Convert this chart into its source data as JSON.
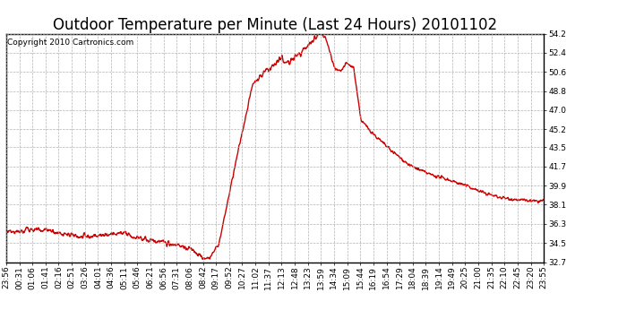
{
  "title": "Outdoor Temperature per Minute (Last 24 Hours) 20101102",
  "copyright": "Copyright 2010 Cartronics.com",
  "line_color": "#cc0000",
  "line_width": 1.0,
  "bg_color": "#ffffff",
  "grid_color": "#aaaaaa",
  "grid_style": "--",
  "ylim": [
    32.7,
    54.2
  ],
  "yticks": [
    32.7,
    34.5,
    36.3,
    38.1,
    39.9,
    41.7,
    43.5,
    45.2,
    47.0,
    48.8,
    50.6,
    52.4,
    54.2
  ],
  "xtick_labels": [
    "23:56",
    "00:31",
    "01:06",
    "01:41",
    "02:16",
    "02:51",
    "03:26",
    "04:01",
    "04:36",
    "05:11",
    "05:46",
    "06:21",
    "06:56",
    "07:31",
    "08:06",
    "08:42",
    "09:17",
    "09:52",
    "10:27",
    "11:02",
    "11:37",
    "12:13",
    "12:48",
    "13:23",
    "13:59",
    "14:34",
    "15:09",
    "15:44",
    "16:19",
    "16:54",
    "17:29",
    "18:04",
    "18:39",
    "19:14",
    "19:49",
    "20:25",
    "21:00",
    "21:35",
    "22:10",
    "22:45",
    "23:20",
    "23:55"
  ],
  "title_fontsize": 12,
  "tick_fontsize": 6.5,
  "copyright_fontsize": 6.5
}
